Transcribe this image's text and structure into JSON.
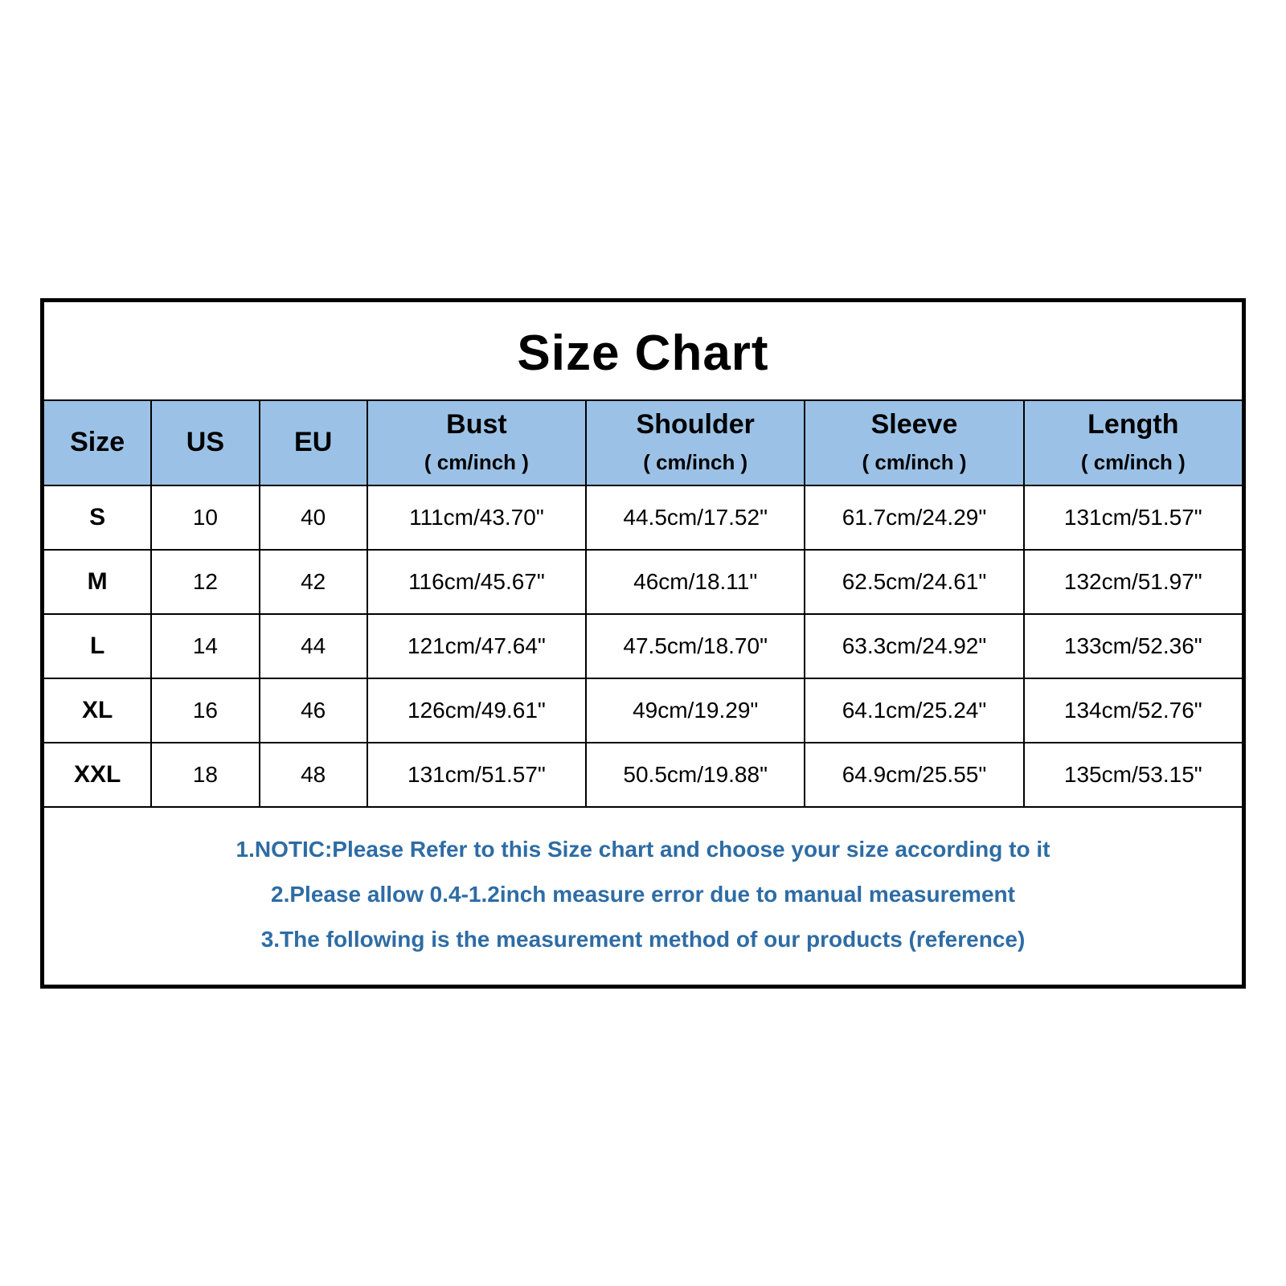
{
  "title": "Size Chart",
  "header_bg": "#9bc2e6",
  "border_color": "#000000",
  "note_color": "#2e6ca4",
  "columns": {
    "size": "Size",
    "us": "US",
    "eu": "EU",
    "bust": "Bust",
    "shoulder": "Shoulder",
    "sleeve": "Sleeve",
    "length": "Length",
    "unit": "( cm/inch )"
  },
  "rows": [
    {
      "size": "S",
      "us": "10",
      "eu": "40",
      "bust": "111cm/43.70\"",
      "shoulder": "44.5cm/17.52\"",
      "sleeve": "61.7cm/24.29\"",
      "length": "131cm/51.57\""
    },
    {
      "size": "M",
      "us": "12",
      "eu": "42",
      "bust": "116cm/45.67\"",
      "shoulder": "46cm/18.11\"",
      "sleeve": "62.5cm/24.61\"",
      "length": "132cm/51.97\""
    },
    {
      "size": "L",
      "us": "14",
      "eu": "44",
      "bust": "121cm/47.64\"",
      "shoulder": "47.5cm/18.70\"",
      "sleeve": "63.3cm/24.92\"",
      "length": "133cm/52.36\""
    },
    {
      "size": "XL",
      "us": "16",
      "eu": "46",
      "bust": "126cm/49.61\"",
      "shoulder": "49cm/19.29\"",
      "sleeve": "64.1cm/25.24\"",
      "length": "134cm/52.76\""
    },
    {
      "size": "XXL",
      "us": "18",
      "eu": "48",
      "bust": "131cm/51.57\"",
      "shoulder": "50.5cm/19.88\"",
      "sleeve": "64.9cm/25.55\"",
      "length": "135cm/53.15\""
    }
  ],
  "notes": [
    "1.NOTIC:Please Refer to this Size chart and choose your size according to it",
    "2.Please allow 0.4-1.2inch measure error due to manual measurement",
    "3.The following is the measurement method of our products (reference)"
  ]
}
